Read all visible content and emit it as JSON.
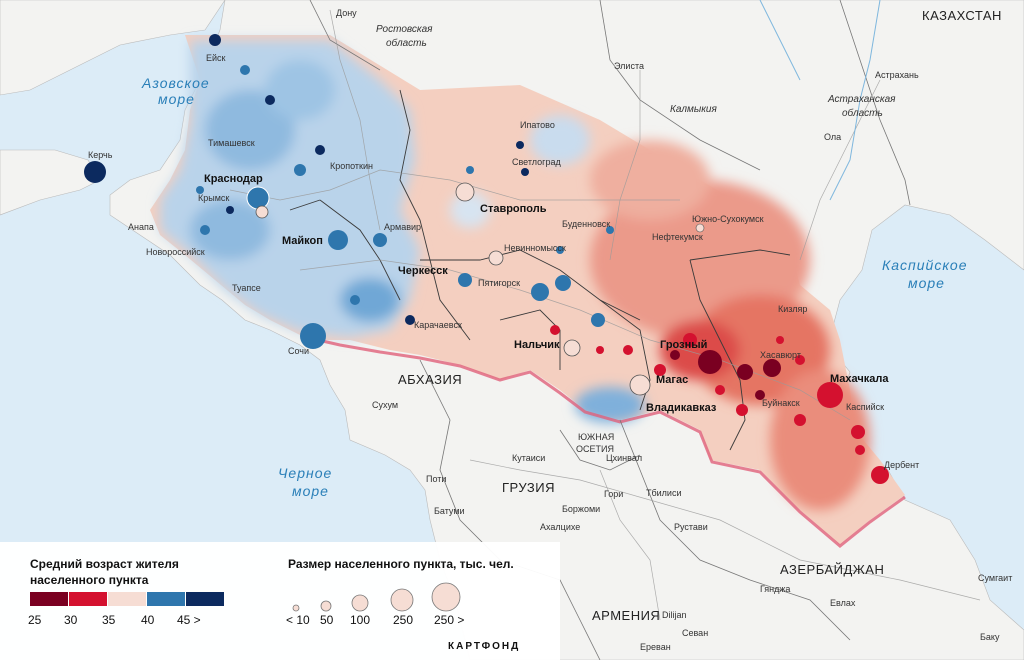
{
  "colors": {
    "water": "#dcecf7",
    "land": "#f3f3f1",
    "border": "#7a7a7a",
    "state_border": "#e0607a",
    "age_scale": [
      "#7a0021",
      "#d4112f",
      "#f6ddd4",
      "#2e76ad",
      "#0c2a5f"
    ]
  },
  "seas": {
    "azov_line1": "Азовское",
    "azov_line2": "море",
    "caspian_line1": "Каспийское",
    "caspian_line2": "море",
    "black_line1": "Черное",
    "black_line2": "море"
  },
  "countries": {
    "kazakhstan": "КАЗАХСТАН",
    "abkhazia": "АБХАЗИЯ",
    "georgia": "ГРУЗИЯ",
    "armenia": "АРМЕНИЯ",
    "azerbaijan": "АЗЕРБАЙДЖАН",
    "south_ossetia_line1": "ЮЖНАЯ",
    "south_ossetia_line2": "ОСЕТИЯ"
  },
  "regions": {
    "rostov_line1": "Ростовская",
    "rostov_line2": "область",
    "kalmykia": "Калмыкия",
    "astrakhan_line1": "Астраханская",
    "astrakhan_line2": "область"
  },
  "capitals": {
    "krasnodar": "Краснодар",
    "maykop": "Майкоп",
    "stavropol": "Ставрополь",
    "cherkessk": "Черкесск",
    "nalchik": "Нальчик",
    "grozny": "Грозный",
    "magas": "Магас",
    "vladikavkaz": "Владикавказ",
    "makhachkala": "Махачкала"
  },
  "towns": {
    "don": "Дону",
    "eysk": "Ейск",
    "elista": "Элиста",
    "astrakhan": "Астрахань",
    "ola": "Ола",
    "kerch": "Керчь",
    "timashevsk": "Тимашевск",
    "kropotkin": "Кропоткин",
    "krymsk": "Крымск",
    "anapa": "Анапа",
    "novorossiysk": "Новороссийск",
    "tuapse": "Туапсе",
    "sochi": "Сочи",
    "armavir": "Армавир",
    "ipatovo": "Ипатово",
    "svetlograd": "Светлоград",
    "budennovsk": "Буденновск",
    "neftekumsk": "Нефтекумск",
    "yuzhno_sukhokumsk": "Южно-Сухокумск",
    "nevinnomyssk": "Невинномысск",
    "pyatigorsk": "Пятигорск",
    "karachaevsk": "Карачаевск",
    "kizlyar": "Кизляр",
    "khasavyurt": "Хасавюрт",
    "buynaksk": "Буйнакск",
    "kaspiysk": "Каспийск",
    "derbent": "Дербент",
    "sukhum": "Сухум",
    "kutaisi": "Кутаиси",
    "tskhinval": "Цхинвал",
    "poti": "Поти",
    "batumi": "Батуми",
    "gori": "Гори",
    "borzhomi": "Боржоми",
    "akhaltsikhe": "Ахалцихе",
    "tbilisi": "Тбилиси",
    "rustavi": "Рустави",
    "gyandzha": "Гянджа",
    "sumgait": "Сумгаит",
    "yevlakh": "Евлах",
    "baku": "Баку",
    "dilijan": "Dilijan",
    "sevan": "Севан",
    "yerevan": "Ереван"
  },
  "legend": {
    "age_title_line1": "Средний возраст жителя",
    "age_title_line2": "населенного пункта",
    "age_ticks": [
      "25",
      "30",
      "35",
      "40",
      "45 >"
    ],
    "size_title": "Размер населенного пункта, тыс. чел.",
    "size_ticks": [
      "< 10",
      "50",
      "100",
      "250",
      "250 >"
    ],
    "logo": "КАРТФОНД"
  }
}
